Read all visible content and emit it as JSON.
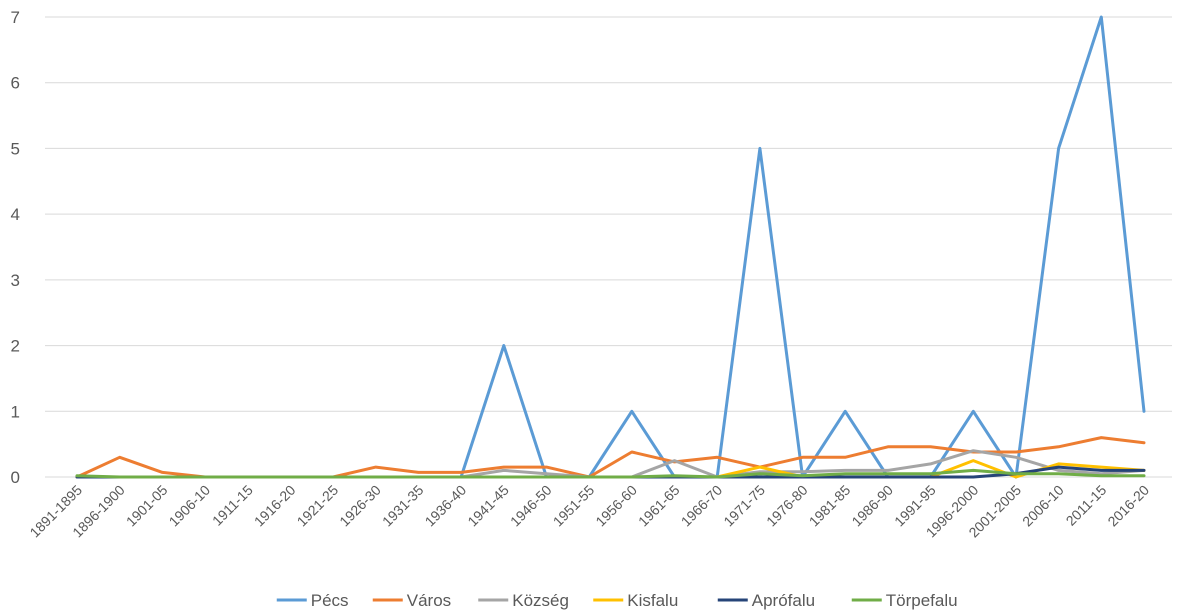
{
  "chart_data": {
    "type": "line",
    "title": "",
    "xlabel": "",
    "ylabel": "",
    "ylim": [
      0,
      7
    ],
    "yticks": [
      "0",
      "1",
      "2",
      "3",
      "4",
      "5",
      "6",
      "7"
    ],
    "grid": true,
    "legend_position": "bottom",
    "categories": [
      "1891-1895",
      "1896-1900",
      "1901-05",
      "1906-10",
      "1911-15",
      "1916-20",
      "1921-25",
      "1926-30",
      "1931-35",
      "1936-40",
      "1941-45",
      "1946-50",
      "1951-55",
      "1956-60",
      "1961-65",
      "1966-70",
      "1971-75",
      "1976-80",
      "1981-85",
      "1986-90",
      "1991-95",
      "1996-2000",
      "2001-2005",
      "2006-10",
      "2011-15",
      "2016-20"
    ],
    "series": [
      {
        "name": "Pécs",
        "color": "#5b9bd5",
        "values": [
          0,
          0,
          0,
          0,
          0,
          0,
          0,
          0,
          0,
          0,
          2,
          0,
          0,
          1,
          0,
          0,
          5,
          0,
          1,
          0,
          0,
          1,
          0,
          5,
          7,
          1
        ]
      },
      {
        "name": "Város",
        "color": "#ed7d31",
        "values": [
          0,
          0.3,
          0.07,
          0,
          0,
          0,
          0,
          0.15,
          0.07,
          0.07,
          0.15,
          0.15,
          0,
          0.38,
          0.23,
          0.3,
          0.15,
          0.3,
          0.3,
          0.46,
          0.46,
          0.38,
          0.38,
          0.46,
          0.6,
          0.52
        ]
      },
      {
        "name": "Község",
        "color": "#a5a5a5",
        "values": [
          0,
          0,
          0,
          0,
          0,
          0,
          0,
          0,
          0,
          0,
          0.1,
          0.05,
          0,
          0,
          0.25,
          0,
          0.08,
          0.08,
          0.1,
          0.1,
          0.2,
          0.4,
          0.3,
          0.1,
          0.05,
          0.1
        ]
      },
      {
        "name": "Kisfalu",
        "color": "#ffc000",
        "values": [
          0,
          0,
          0,
          0,
          0,
          0,
          0,
          0,
          0,
          0,
          0,
          0,
          0,
          0,
          0,
          0,
          0.15,
          0,
          0,
          0,
          0,
          0.25,
          0,
          0.2,
          0.15,
          0.1
        ]
      },
      {
        "name": "Aprófalu",
        "color": "#264478",
        "values": [
          0,
          0,
          0,
          0,
          0,
          0,
          0,
          0,
          0,
          0,
          0,
          0,
          0,
          0,
          0,
          0,
          0,
          0,
          0,
          0,
          0,
          0,
          0.05,
          0.15,
          0.1,
          0.1
        ]
      },
      {
        "name": "Törpefalu",
        "color": "#70ad47",
        "values": [
          0.02,
          0,
          0,
          0,
          0,
          0,
          0,
          0,
          0,
          0,
          0,
          0,
          0,
          0,
          0.02,
          0,
          0.05,
          0.02,
          0.05,
          0.05,
          0.05,
          0.1,
          0.05,
          0.05,
          0.02,
          0.02
        ]
      }
    ]
  }
}
